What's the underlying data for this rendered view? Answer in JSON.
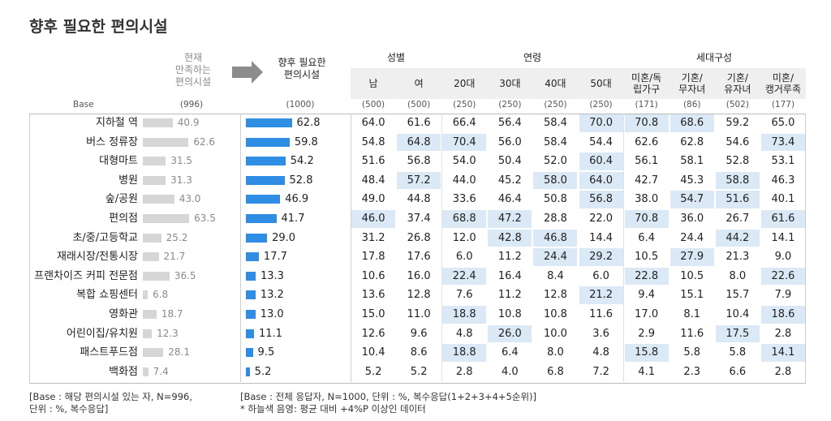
{
  "title": "향후 필요한 편의시설",
  "header": {
    "current_label_lines": [
      "현재",
      "만족하는",
      "편의시설"
    ],
    "future_label_lines": [
      "향후 필요한",
      "편의시설"
    ],
    "groups": [
      {
        "label": "성별"
      },
      {
        "label": "연령"
      },
      {
        "label": "세대구성"
      }
    ],
    "columns": [
      "남",
      "여",
      "20대",
      "30대",
      "40대",
      "50대",
      "미혼/독립가구",
      "기혼/무자녀",
      "기혼/유자녀",
      "미혼/캥거루족"
    ],
    "column_lines": [
      [
        "남"
      ],
      [
        "여"
      ],
      [
        "20대"
      ],
      [
        "30대"
      ],
      [
        "40대"
      ],
      [
        "50대"
      ],
      [
        "미혼/독",
        "립가구"
      ],
      [
        "기혼/",
        "무자녀"
      ],
      [
        "기혼/",
        "유자녀"
      ],
      [
        "미혼/",
        "캥거루족"
      ]
    ]
  },
  "base": {
    "label": "Base",
    "current": "(996)",
    "future": "(1000)",
    "columns": [
      "(500)",
      "(500)",
      "(250)",
      "(250)",
      "(250)",
      "(250)",
      "(171)",
      "(86)",
      "(502)",
      "(177)"
    ]
  },
  "chart_data": {
    "type": "table",
    "title": "향후 필요한 편의시설",
    "categories": [
      "지하철 역",
      "버스 정류장",
      "대형마트",
      "병원",
      "숲/공원",
      "편의점",
      "초/중/고등학교",
      "재래시장/전통시장",
      "프랜차이즈 커피 전문점",
      "복합 쇼핑센터",
      "영화관",
      "어린이집/유치원",
      "패스트푸드점",
      "백화점"
    ],
    "current_satisfied": [
      40.9,
      62.6,
      31.5,
      31.3,
      43.0,
      63.5,
      25.2,
      21.7,
      36.5,
      6.8,
      18.7,
      12.3,
      28.1,
      7.4
    ],
    "future_needed": [
      62.8,
      59.8,
      54.2,
      52.8,
      46.9,
      41.7,
      29.0,
      17.7,
      13.3,
      13.2,
      13.0,
      11.1,
      9.5,
      5.2
    ],
    "current_satisfied_labels": [
      "40.9",
      "62.6",
      "31.5",
      "31.3",
      "43.0",
      "63.5",
      "25.2",
      "21.7",
      "36.5",
      "6.8",
      "18.7",
      "12.3",
      "28.1",
      "7.4"
    ],
    "future_needed_labels": [
      "62.8",
      "59.8",
      "54.2",
      "52.8",
      "46.9",
      "41.7",
      "29.0",
      "17.7",
      "13.3",
      "13.2",
      "13.0",
      "11.1",
      "9.5",
      "5.2"
    ],
    "segments": [
      "남",
      "여",
      "20대",
      "30대",
      "40대",
      "50대",
      "미혼/독립가구",
      "기혼/무자녀",
      "기혼/유자녀",
      "미혼/캥거루족"
    ],
    "segment_values": [
      [
        "64.0",
        "61.6",
        "66.4",
        "56.4",
        "58.4",
        "70.0",
        "70.8",
        "68.6",
        "59.2",
        "65.0"
      ],
      [
        "54.8",
        "64.8",
        "70.4",
        "56.0",
        "58.4",
        "54.4",
        "62.6",
        "62.8",
        "54.6",
        "73.4"
      ],
      [
        "51.6",
        "56.8",
        "54.0",
        "50.4",
        "52.0",
        "60.4",
        "56.1",
        "58.1",
        "52.8",
        "53.1"
      ],
      [
        "48.4",
        "57.2",
        "44.0",
        "45.2",
        "58.0",
        "64.0",
        "42.7",
        "45.3",
        "58.8",
        "46.3"
      ],
      [
        "49.0",
        "44.8",
        "33.6",
        "46.4",
        "50.8",
        "56.8",
        "38.0",
        "54.7",
        "51.6",
        "40.1"
      ],
      [
        "46.0",
        "37.4",
        "68.8",
        "47.2",
        "28.8",
        "22.0",
        "70.8",
        "36.0",
        "26.7",
        "61.6"
      ],
      [
        "31.2",
        "26.8",
        "12.0",
        "42.8",
        "46.8",
        "14.4",
        "6.4",
        "24.4",
        "44.2",
        "14.1"
      ],
      [
        "17.8",
        "17.6",
        "6.0",
        "11.2",
        "24.4",
        "29.2",
        "10.5",
        "27.9",
        "21.3",
        "9.0"
      ],
      [
        "10.6",
        "16.0",
        "22.4",
        "16.4",
        "8.4",
        "6.0",
        "22.8",
        "10.5",
        "8.0",
        "22.6"
      ],
      [
        "13.6",
        "12.8",
        "7.6",
        "11.2",
        "12.8",
        "21.2",
        "9.4",
        "15.1",
        "15.7",
        "7.9"
      ],
      [
        "15.0",
        "11.0",
        "18.8",
        "10.8",
        "10.8",
        "11.6",
        "17.0",
        "8.1",
        "10.4",
        "18.6"
      ],
      [
        "12.6",
        "9.6",
        "4.8",
        "26.0",
        "10.0",
        "3.6",
        "2.9",
        "11.6",
        "17.5",
        "2.8"
      ],
      [
        "10.4",
        "8.6",
        "18.8",
        "6.4",
        "8.0",
        "4.8",
        "15.8",
        "5.8",
        "5.8",
        "14.1"
      ],
      [
        "5.2",
        "5.2",
        "2.8",
        "4.0",
        "6.8",
        "7.2",
        "4.1",
        "2.3",
        "6.6",
        "2.8"
      ]
    ],
    "highlighted": [
      [
        0,
        0,
        0,
        0,
        0,
        1,
        1,
        1,
        0,
        0
      ],
      [
        0,
        1,
        1,
        0,
        0,
        0,
        0,
        0,
        0,
        1
      ],
      [
        0,
        0,
        0,
        0,
        0,
        1,
        0,
        0,
        0,
        0
      ],
      [
        0,
        1,
        0,
        0,
        1,
        1,
        0,
        0,
        1,
        0
      ],
      [
        0,
        0,
        0,
        0,
        0,
        1,
        0,
        1,
        1,
        0
      ],
      [
        1,
        0,
        1,
        1,
        0,
        0,
        1,
        0,
        0,
        1
      ],
      [
        0,
        0,
        0,
        1,
        1,
        0,
        0,
        0,
        1,
        0
      ],
      [
        0,
        0,
        0,
        0,
        1,
        1,
        0,
        1,
        0,
        0
      ],
      [
        0,
        0,
        1,
        0,
        0,
        0,
        1,
        0,
        0,
        1
      ],
      [
        0,
        0,
        0,
        0,
        0,
        1,
        0,
        0,
        0,
        0
      ],
      [
        0,
        0,
        1,
        0,
        0,
        0,
        0,
        0,
        0,
        1
      ],
      [
        0,
        0,
        0,
        1,
        0,
        0,
        0,
        0,
        1,
        0
      ],
      [
        0,
        0,
        1,
        0,
        0,
        0,
        1,
        0,
        0,
        1
      ],
      [
        0,
        0,
        0,
        0,
        0,
        0,
        0,
        0,
        0,
        0
      ]
    ]
  },
  "colors": {
    "current_bar": "#d6d6d6",
    "future_bar": "#2f8de4",
    "highlight": "#dbe8f5",
    "header_bg": "#efefef",
    "arrow": "#8c8c8c"
  },
  "notes": {
    "left_line1": "[Base : 해당 편의시설 있는 자, N=996,",
    "left_line2": "단위 : %, 복수응답]",
    "right_line1": "[Base : 전체 응답자, N=1000, 단위 : %, 복수응답(1+2+3+4+5순위)]",
    "right_line2": "* 하늘색 음영: 평균 대비 +4%P 이상인 데이터"
  }
}
